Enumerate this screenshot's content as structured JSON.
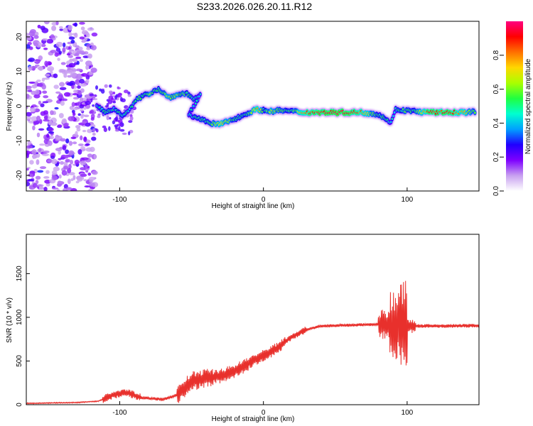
{
  "title": "S233.2026.026.20.11.R12",
  "chart_data": [
    {
      "type": "heatmap",
      "xlabel": "Height of straight line (km)",
      "ylabel": "Frequency (Hz)",
      "xlim": [
        -165,
        150
      ],
      "ylim": [
        -24.5,
        24.5
      ],
      "xticks": [
        "-100",
        "0",
        "100"
      ],
      "xtick_values": [
        -100,
        0,
        100
      ],
      "yticks": [
        "-20",
        "-10",
        "0",
        "10",
        "20"
      ],
      "ytick_values": [
        -20,
        -10,
        0,
        10,
        20
      ],
      "colorbar": {
        "label": "Normalized spectral amplitude",
        "range": [
          0,
          1
        ],
        "ticks": [
          "0.0",
          "0.2",
          "0.4",
          "0.6",
          "0.8"
        ],
        "tick_values": [
          0,
          0.2,
          0.4,
          0.6,
          0.8
        ],
        "colors": [
          "#ffffff",
          "#c8a0f0",
          "#7e00ff",
          "#2000ff",
          "#00a0ff",
          "#00ffd0",
          "#20ff40",
          "#aaff00",
          "#ffd700",
          "#ff7000",
          "#ff0000",
          "#ff0080"
        ]
      },
      "ridge": [
        {
          "x": -116,
          "f": 0.0,
          "a": 0.4
        },
        {
          "x": -110,
          "f": -1.8,
          "a": 0.55
        },
        {
          "x": -104,
          "f": -0.8,
          "a": 0.45
        },
        {
          "x": -98,
          "f": -2.5,
          "a": 0.5
        },
        {
          "x": -93,
          "f": -1.0,
          "a": 0.45
        },
        {
          "x": -88,
          "f": 2.0,
          "a": 0.5
        },
        {
          "x": -83,
          "f": 3.0,
          "a": 0.55
        },
        {
          "x": -78,
          "f": 4.0,
          "a": 0.6
        },
        {
          "x": -73,
          "f": 5.0,
          "a": 0.5
        },
        {
          "x": -66,
          "f": 2.5,
          "a": 0.65
        },
        {
          "x": -60,
          "f": 3.2,
          "a": 0.6
        },
        {
          "x": -54,
          "f": 3.8,
          "a": 0.55
        },
        {
          "x": -48,
          "f": 2.0,
          "a": 0.5
        },
        {
          "x": -44,
          "f": 3.0,
          "a": 0.45
        },
        {
          "x": -52,
          "f": -2.5,
          "a": 0.45
        },
        {
          "x": -44,
          "f": -3.5,
          "a": 0.5
        },
        {
          "x": -38,
          "f": -5.0,
          "a": 0.55
        },
        {
          "x": -30,
          "f": -5.2,
          "a": 0.7
        },
        {
          "x": -22,
          "f": -4.0,
          "a": 0.6
        },
        {
          "x": -16,
          "f": -3.0,
          "a": 0.5
        },
        {
          "x": -10,
          "f": -1.8,
          "a": 0.55
        },
        {
          "x": -5,
          "f": -1.0,
          "a": 0.8
        },
        {
          "x": 0,
          "f": -1.2,
          "a": 0.5
        },
        {
          "x": 6,
          "f": -1.5,
          "a": 0.65
        },
        {
          "x": 12,
          "f": -1.2,
          "a": 0.55
        },
        {
          "x": 20,
          "f": -1.5,
          "a": 0.5
        },
        {
          "x": 28,
          "f": -1.8,
          "a": 0.8
        },
        {
          "x": 40,
          "f": -1.8,
          "a": 0.95
        },
        {
          "x": 55,
          "f": -1.8,
          "a": 0.95
        },
        {
          "x": 68,
          "f": -1.8,
          "a": 0.85
        },
        {
          "x": 78,
          "f": -2.2,
          "a": 0.55
        },
        {
          "x": 84,
          "f": -3.2,
          "a": 0.5
        },
        {
          "x": 88,
          "f": -5.0,
          "a": 0.45
        },
        {
          "x": 92,
          "f": -1.0,
          "a": 0.45
        },
        {
          "x": 98,
          "f": -1.2,
          "a": 0.55
        },
        {
          "x": 105,
          "f": -1.5,
          "a": 0.5
        },
        {
          "x": 115,
          "f": -1.8,
          "a": 0.9
        },
        {
          "x": 128,
          "f": -1.8,
          "a": 0.9
        },
        {
          "x": 140,
          "f": -1.8,
          "a": 0.75
        },
        {
          "x": 148,
          "f": -1.5,
          "a": 0.5
        }
      ]
    },
    {
      "type": "line",
      "xlabel": "Height of straight line (km)",
      "ylabel": "SNR (10 * v/v)",
      "xlim": [
        -165,
        150
      ],
      "ylim": [
        0,
        1950
      ],
      "xticks": [
        "-100",
        "0",
        "100"
      ],
      "xtick_values": [
        -100,
        0,
        100
      ],
      "yticks": [
        "0",
        "500",
        "1000",
        "1500"
      ],
      "ytick_values": [
        0,
        500,
        1000,
        1500
      ],
      "color": "#e8302c",
      "trend": [
        {
          "x": -165,
          "y": 15
        },
        {
          "x": -130,
          "y": 25
        },
        {
          "x": -115,
          "y": 40
        },
        {
          "x": -105,
          "y": 110
        },
        {
          "x": -95,
          "y": 140
        },
        {
          "x": -85,
          "y": 80
        },
        {
          "x": -70,
          "y": 60
        },
        {
          "x": -60,
          "y": 110
        },
        {
          "x": -50,
          "y": 270
        },
        {
          "x": -40,
          "y": 300
        },
        {
          "x": -30,
          "y": 330
        },
        {
          "x": -20,
          "y": 380
        },
        {
          "x": -10,
          "y": 480
        },
        {
          "x": 0,
          "y": 560
        },
        {
          "x": 10,
          "y": 650
        },
        {
          "x": 20,
          "y": 780
        },
        {
          "x": 30,
          "y": 860
        },
        {
          "x": 40,
          "y": 900
        },
        {
          "x": 60,
          "y": 910
        },
        {
          "x": 80,
          "y": 920
        },
        {
          "x": 100,
          "y": 900
        },
        {
          "x": 120,
          "y": 900
        },
        {
          "x": 150,
          "y": 905
        }
      ]
    }
  ]
}
